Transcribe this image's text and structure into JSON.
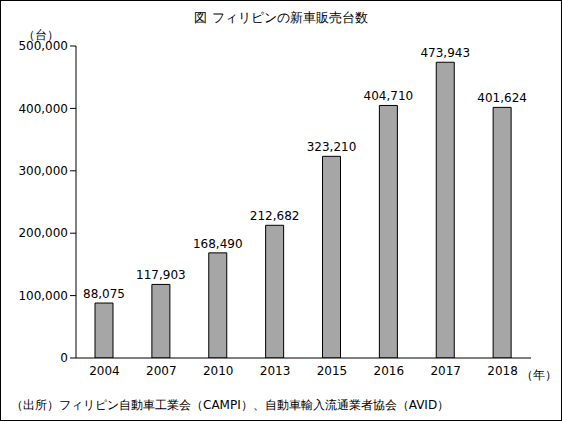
{
  "chart_data": {
    "type": "bar",
    "title": "図 フィリピンの新車販売台数",
    "y_label": "（台）",
    "x_label": "（年）",
    "source": "（出所）フィリピン自動車工業会（CAMPI）、自動車輸入流通業者協会（AVID）",
    "categories": [
      "2004",
      "2007",
      "2010",
      "2013",
      "2015",
      "2016",
      "2017",
      "2018"
    ],
    "values": [
      88075,
      117903,
      168490,
      212682,
      323210,
      404710,
      473943,
      401624
    ],
    "value_labels": [
      "88,075",
      "117,903",
      "168,490",
      "212,682",
      "323,210",
      "404,710",
      "473,943",
      "401,624"
    ],
    "color": "#a6a6a6",
    "ylim": [
      0,
      500000
    ],
    "yticks": [
      0,
      {
        "value": 100000,
        "label": "100,000"
      },
      {
        "value": 200000,
        "label": "200,000"
      },
      {
        "value": 300000,
        "label": "300,000"
      },
      {
        "value": 400000,
        "label": "400,000"
      },
      {
        "value": 500000,
        "label": "500,000"
      }
    ],
    "grid": false,
    "data_labels": true
  }
}
